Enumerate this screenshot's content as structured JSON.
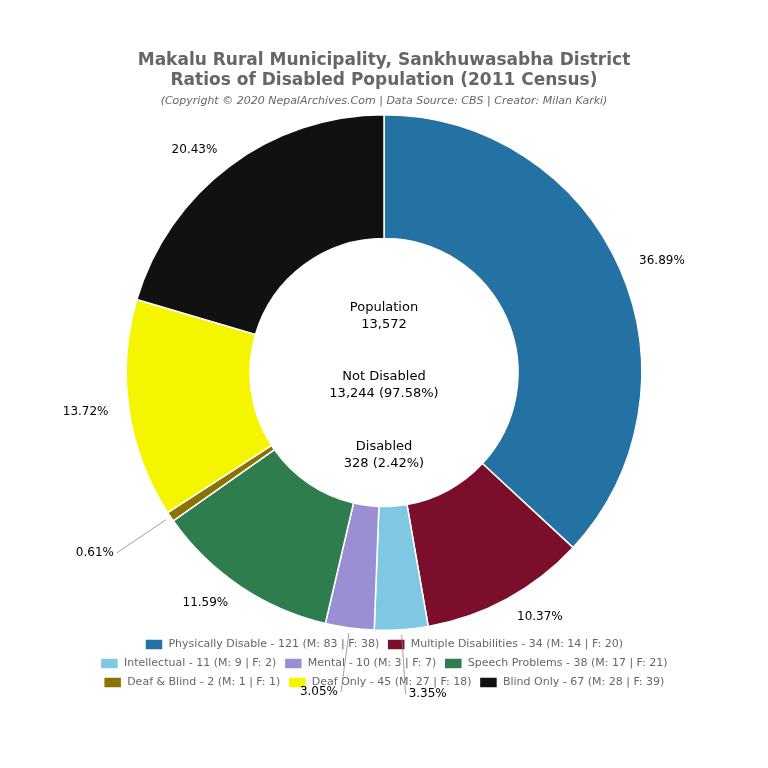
{
  "chart_data": {
    "type": "doughnut",
    "title": [
      "Makalu Rural Municipality, Sankhuwasabha District",
      "Ratios of Disabled Population (2011 Census)"
    ],
    "subtitle": "(Copyright © 2020 NepalArchives.Com | Data Source: CBS | Creator: Milan Karki)",
    "categories": [
      "Physically Disable - 121 (M: 83 | F: 38)",
      "Multiple Disabilities - 34 (M: 14 | F: 20)",
      "Intellectual - 11 (M: 9 | F: 2)",
      "Mental - 10 (M: 3 | F: 7)",
      "Speech Problems - 38 (M: 17 | F: 21)",
      "Deaf & Blind - 2 (M: 1 | F: 1)",
      "Deaf Only - 45 (M: 27 | F: 18)",
      "Blind Only - 67 (M: 28 | F: 39)"
    ],
    "values": [
      36.89,
      10.37,
      3.35,
      3.05,
      11.59,
      0.61,
      13.72,
      20.43
    ],
    "value_labels": [
      "36.89%",
      "10.37%",
      "3.35%",
      "3.05%",
      "11.59%",
      "0.61%",
      "13.72%",
      "20.43%"
    ],
    "colors": [
      "#2471a3",
      "#7b0e2a",
      "#7ec8e3",
      "#9b8fd4",
      "#2e7d4f",
      "#8b7300",
      "#f5f500",
      "#111111"
    ],
    "data_labels": true,
    "legend": "bottom",
    "annotations": [
      "Population\n13,572",
      "Not Disabled\n13,244 (97.58%)",
      "Disabled\n328 (2.42%)"
    ]
  }
}
